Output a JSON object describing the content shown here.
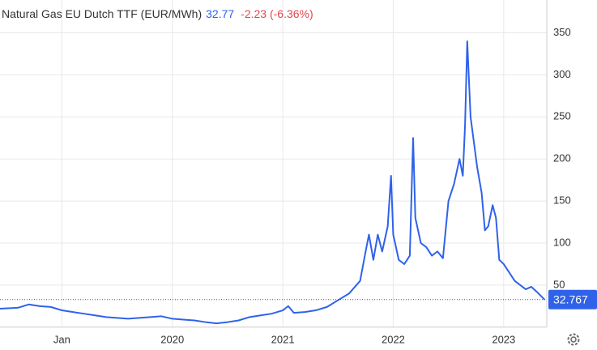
{
  "chart_data": {
    "type": "line",
    "title": "Natural Gas EU Dutch TTF (EUR/MWh)",
    "price": "32.77",
    "change": "-2.23 (-6.36%)",
    "xlim": [
      2018.44,
      2023.39
    ],
    "xticks": [
      {
        "value": 2019,
        "label": "Jan"
      },
      2020,
      2021,
      2022,
      2023
    ],
    "ylim": [
      0,
      389
    ],
    "yticks": [
      50,
      100,
      150,
      200,
      250,
      300,
      350
    ],
    "grid": true,
    "current": {
      "value": 32.767,
      "color": "#2f62e9"
    },
    "series": [
      {
        "color": "#2f62e9",
        "x": [
          2018.44,
          2018.6,
          2018.7,
          2018.8,
          2018.9,
          2019.0,
          2019.1,
          2019.2,
          2019.3,
          2019.4,
          2019.5,
          2019.6,
          2019.7,
          2019.8,
          2019.9,
          2020.0,
          2020.1,
          2020.2,
          2020.3,
          2020.4,
          2020.5,
          2020.6,
          2020.7,
          2020.8,
          2020.9,
          2021.0,
          2021.05,
          2021.1,
          2021.2,
          2021.3,
          2021.4,
          2021.5,
          2021.6,
          2021.7,
          2021.75,
          2021.78,
          2021.82,
          2021.86,
          2021.9,
          2021.95,
          2021.98,
          2022.0,
          2022.05,
          2022.1,
          2022.15,
          2022.18,
          2022.2,
          2022.25,
          2022.3,
          2022.35,
          2022.4,
          2022.45,
          2022.5,
          2022.55,
          2022.6,
          2022.63,
          2022.65,
          2022.67,
          2022.7,
          2022.73,
          2022.76,
          2022.8,
          2022.83,
          2022.86,
          2022.9,
          2022.93,
          2022.96,
          2023.0,
          2023.05,
          2023.1,
          2023.15,
          2023.2,
          2023.25,
          2023.3,
          2023.37
        ],
        "values": [
          22,
          23,
          27,
          25,
          24,
          20,
          18,
          16,
          14,
          12,
          11,
          10,
          11,
          12,
          13,
          10,
          9,
          8,
          6,
          4.5,
          6,
          8,
          12,
          14,
          16,
          20,
          25,
          17,
          18,
          20,
          24,
          32,
          40,
          55,
          90,
          110,
          80,
          110,
          90,
          120,
          180,
          110,
          80,
          75,
          85,
          225,
          130,
          100,
          95,
          85,
          90,
          82,
          150,
          170,
          200,
          180,
          240,
          340,
          250,
          220,
          190,
          160,
          115,
          120,
          145,
          130,
          80,
          75,
          65,
          55,
          50,
          45,
          48,
          42,
          32.77
        ]
      }
    ]
  }
}
